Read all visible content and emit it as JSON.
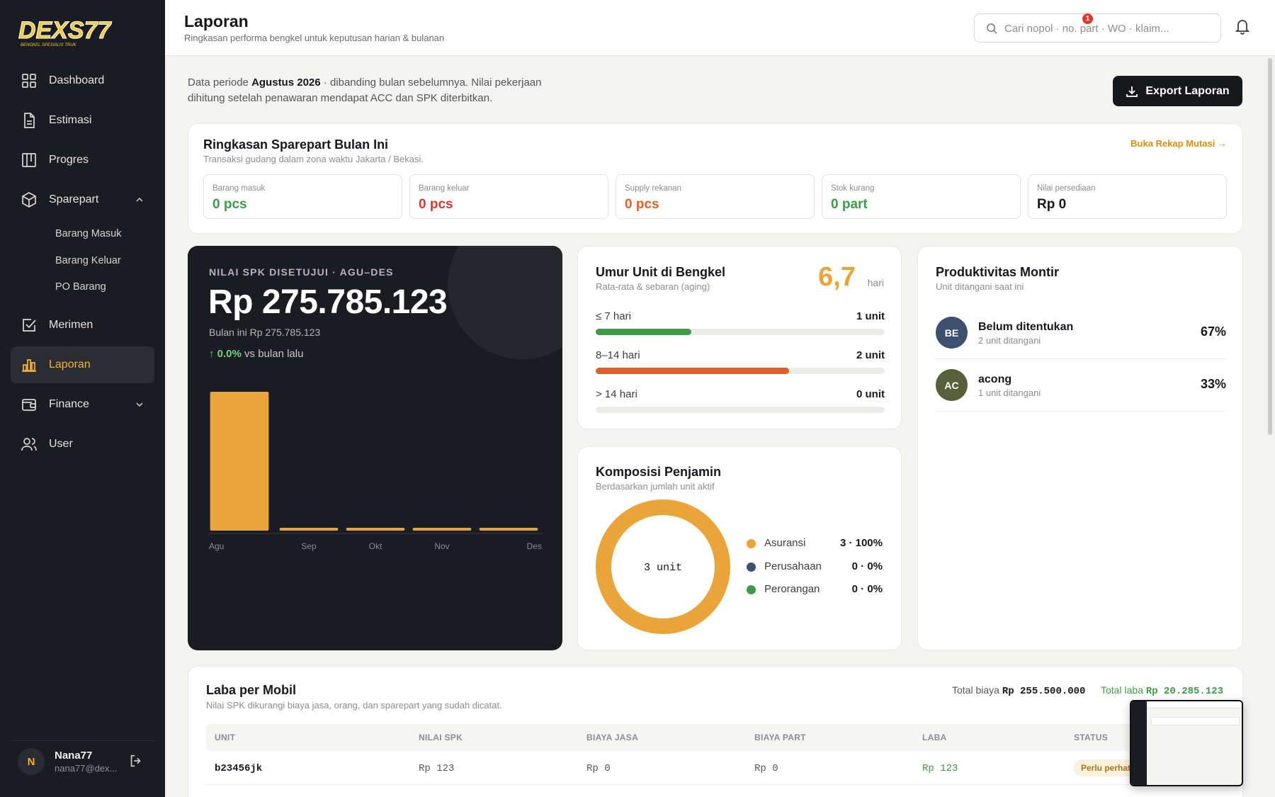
{
  "brand": {
    "name": "DEXS77",
    "tagline": "BENGKEL SPESIALIS TRUK",
    "accent": "#f0b23a"
  },
  "sidebar": {
    "items": [
      {
        "label": "Dashboard",
        "icon": "grid-icon"
      },
      {
        "label": "Estimasi",
        "icon": "file-icon"
      },
      {
        "label": "Progres",
        "icon": "kanban-icon"
      },
      {
        "label": "Sparepart",
        "icon": "box-icon",
        "expanded": true
      },
      {
        "label": "Merimen",
        "icon": "checkbox-icon"
      },
      {
        "label": "Laporan",
        "icon": "bar-chart-icon",
        "active": true
      },
      {
        "label": "Finance",
        "icon": "wallet-icon",
        "expanded": false
      },
      {
        "label": "User",
        "icon": "users-icon"
      }
    ],
    "sparepart_sub": [
      "Barang Masuk",
      "Barang Keluar",
      "PO Barang"
    ],
    "user": {
      "initial": "N",
      "name": "Nana77",
      "email": "nana77@dex..."
    }
  },
  "header": {
    "title": "Laporan",
    "subtitle": "Ringkasan performa bengkel untuk keputusan harian & bulanan",
    "search_placeholder": "Cari nopol · no. part · WO · klaim...",
    "notif_count": "1"
  },
  "intro": {
    "prefix": "Data periode ",
    "period": "Agustus 2026",
    "suffix": " · dibanding bulan sebelumnya. Nilai pekerjaan dihitung setelah penawaran mendapat ACC dan SPK diterbitkan."
  },
  "export_label": "Export Laporan",
  "sparepart_summary": {
    "title": "Ringkasan Sparepart Bulan Ini",
    "subtitle": "Transaksi gudang dalam zona waktu Jakarta / Bekasi.",
    "link": "Buka Rekap Mutasi →",
    "stats": [
      {
        "label": "Barang masuk",
        "value": "0 pcs",
        "color": "#3f9b47"
      },
      {
        "label": "Barang keluar",
        "value": "0 pcs",
        "color": "#d63a2e"
      },
      {
        "label": "Supply rekanan",
        "value": "0 pcs",
        "color": "#e0602b"
      },
      {
        "label": "Stok kurang",
        "value": "0 part",
        "color": "#3f9b47"
      },
      {
        "label": "Nilai persediaan",
        "value": "Rp 0",
        "color": "#17181c"
      }
    ]
  },
  "spk": {
    "label": "NILAI SPK DISETUJUI · AGU–DES",
    "value": "Rp 275.785.123",
    "month_text": "Bulan ini Rp 275.785.123",
    "trend_pct": "0.0%",
    "trend_text": " vs bulan lalu",
    "trend_arrow": "↑"
  },
  "chart_data": {
    "type": "bar",
    "categories": [
      "Agu",
      "Sep",
      "Okt",
      "Nov",
      "Des"
    ],
    "values": [
      275785123,
      0,
      0,
      0,
      0
    ],
    "ylim": [
      0,
      275785123
    ],
    "grid": false,
    "bar_color": "#e9a53a"
  },
  "aging": {
    "title": "Umur Unit di Bengkel",
    "subtitle": "Rata-rata & sebaran (aging)",
    "average": "6,7",
    "unit": "hari",
    "rows": [
      {
        "label": "≤ 7 hari",
        "count": "1 unit",
        "fraction": 0.33,
        "color": "#3f9b47"
      },
      {
        "label": "8–14 hari",
        "count": "2 unit",
        "fraction": 0.67,
        "color": "#e0602b"
      },
      {
        "label": "> 14 hari",
        "count": "0 unit",
        "fraction": 0,
        "color": "#9a9a9a"
      }
    ]
  },
  "penjamin": {
    "title": "Komposisi Penjamin",
    "subtitle": "Berdasarkan jumlah unit aktif",
    "center_label": "3 unit",
    "items": [
      {
        "name": "Asuransi",
        "value": "3 · 100%",
        "fraction": 1.0,
        "color": "#e9a53a"
      },
      {
        "name": "Perusahaan",
        "value": "0 · 0%",
        "fraction": 0,
        "color": "#3c5170"
      },
      {
        "name": "Perorangan",
        "value": "0 · 0%",
        "fraction": 0,
        "color": "#3f9b47"
      }
    ]
  },
  "montir": {
    "title": "Produktivitas Montir",
    "subtitle": "Unit ditangani saat ini",
    "rows": [
      {
        "initials": "BE",
        "name": "Belum ditentukan",
        "sub": "2 unit ditangani",
        "pct": "67%",
        "color": "#3c5170"
      },
      {
        "initials": "AC",
        "name": "acong",
        "sub": "1 unit ditangani",
        "pct": "33%",
        "color": "#56613a"
      }
    ]
  },
  "laba": {
    "title": "Laba per Mobil",
    "subtitle": "Nilai SPK dikurangi biaya jasa, orang, dan sparepart yang sudah dicatat.",
    "total_biaya_label": "Total biaya",
    "total_biaya": "Rp 255.500.000",
    "total_laba_label": "Total laba",
    "total_laba": "Rp 20.285.123",
    "columns": [
      "UNIT",
      "NILAI SPK",
      "BIAYA JASA",
      "BIAYA PART",
      "LABA",
      "STATUS"
    ],
    "rows": [
      {
        "unit": "b23456jk",
        "spk": "Rp 123",
        "jasa": "Rp 0",
        "part": "Rp 0",
        "laba": "Rp 123",
        "status": "Perlu perhatian"
      }
    ]
  }
}
